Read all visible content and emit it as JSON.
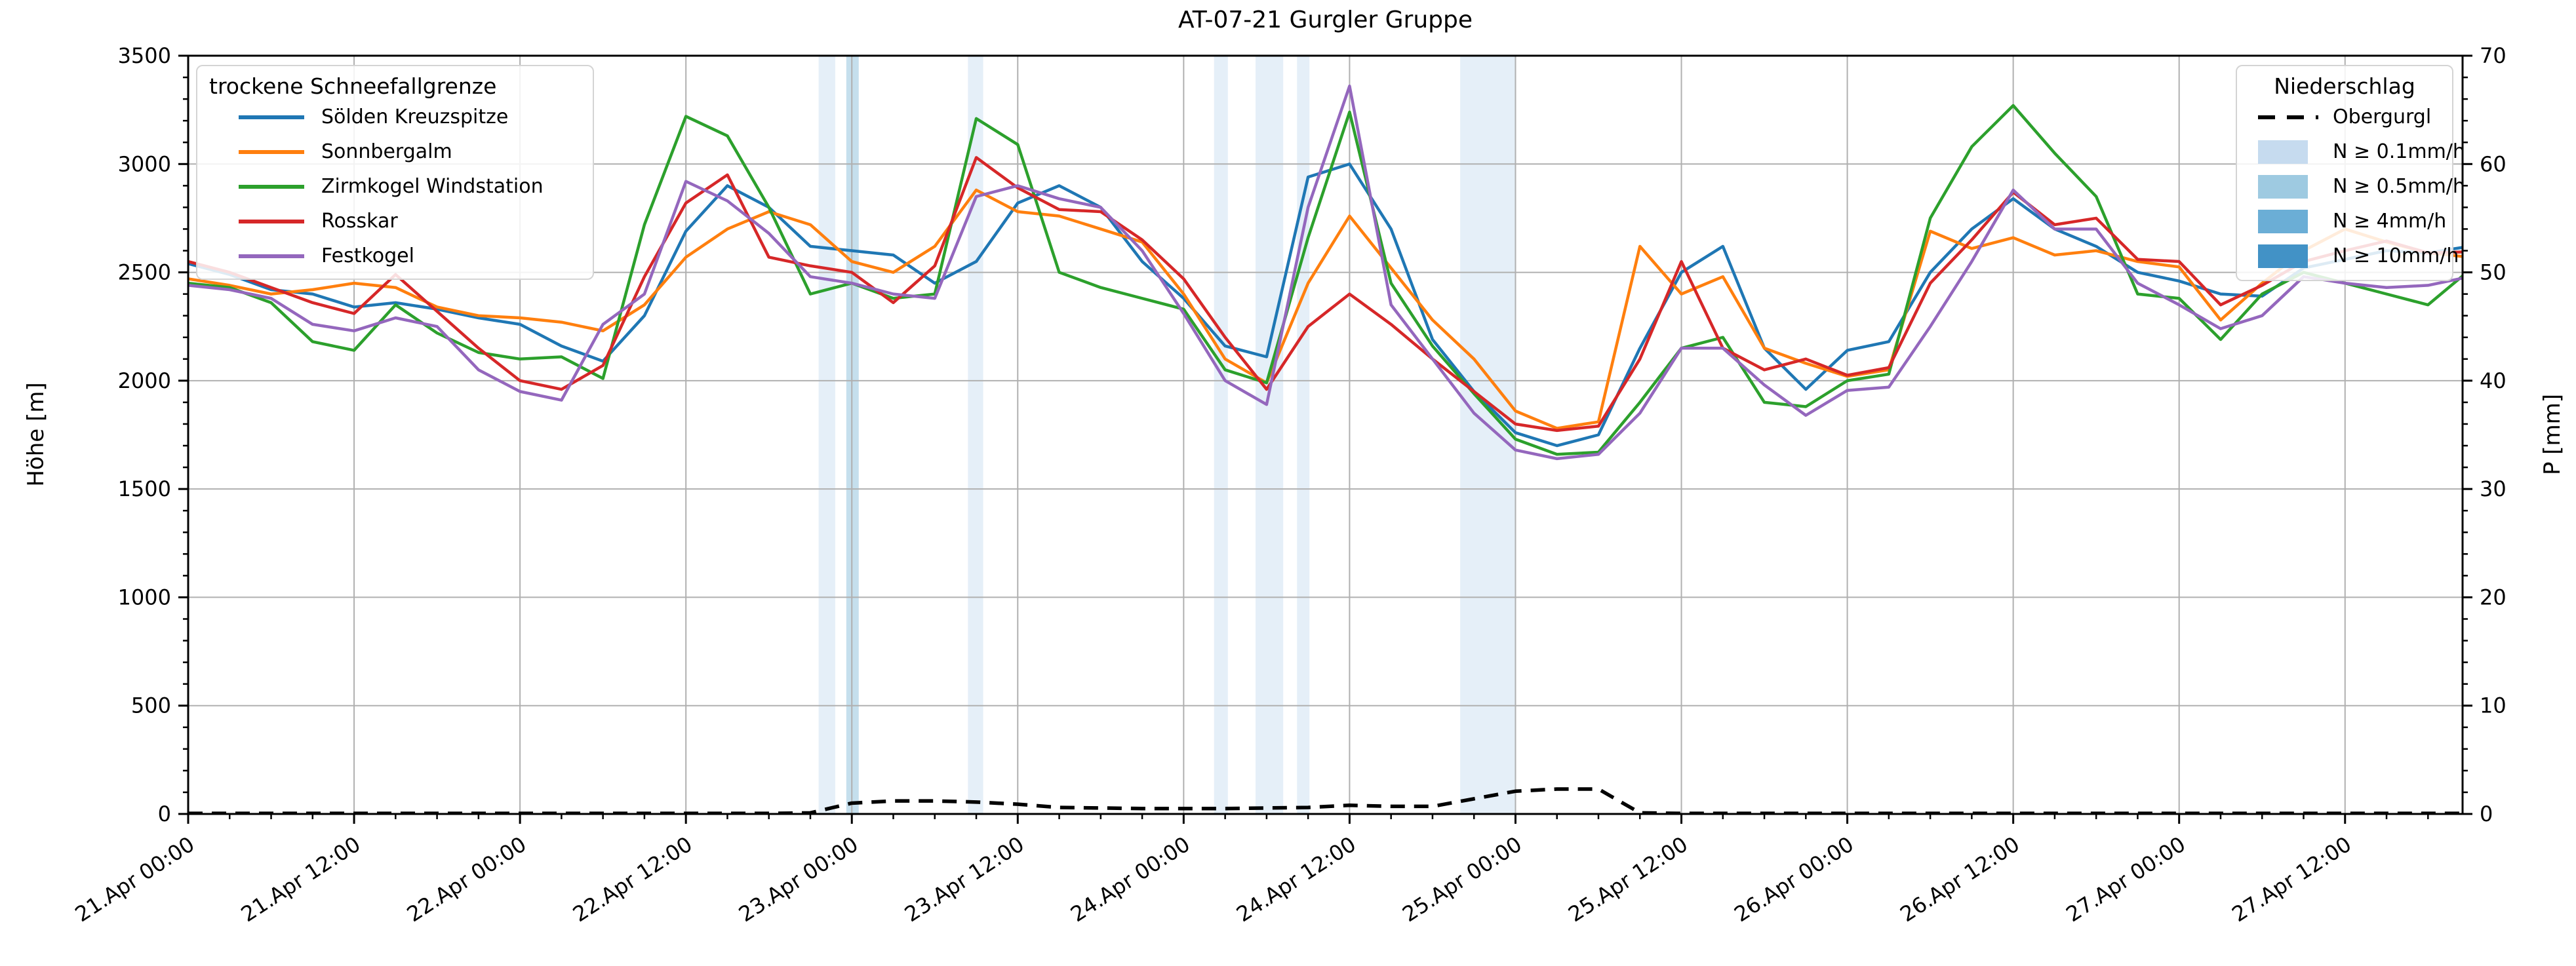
{
  "title": "AT-07-21 Gurgler Gruppe",
  "axes": {
    "y_left_label": "Höhe [m]",
    "y_right_label": "P [mm]",
    "y_left_ticks": [
      0,
      500,
      1000,
      1500,
      2000,
      2500,
      3000,
      3500
    ],
    "y_right_ticks": [
      0,
      10,
      20,
      30,
      40,
      50,
      60,
      70
    ],
    "x_tick_hours": [
      0,
      12,
      24,
      36,
      48,
      60,
      72,
      84,
      96,
      108,
      120,
      132,
      144,
      156
    ],
    "x_tick_labels": [
      "21.Apr 00:00",
      "21.Apr 12:00",
      "22.Apr 00:00",
      "22.Apr 12:00",
      "23.Apr 00:00",
      "23.Apr 12:00",
      "24.Apr 00:00",
      "24.Apr 12:00",
      "25.Apr 00:00",
      "25.Apr 12:00",
      "26.Apr 00:00",
      "26.Apr 12:00",
      "27.Apr 00:00",
      "27.Apr 12:00"
    ]
  },
  "legend_left": {
    "title": "trockene Schneefallgrenze",
    "items": [
      {
        "label": "Sölden Kreuzspitze",
        "color": "#1f77b4"
      },
      {
        "label": "Sonnbergalm",
        "color": "#ff7f0e"
      },
      {
        "label": "Zirmkogel Windstation",
        "color": "#2ca02c"
      },
      {
        "label": "Rosskar",
        "color": "#d62728"
      },
      {
        "label": "Festkogel",
        "color": "#9467bd"
      }
    ]
  },
  "legend_right": {
    "title": "Niederschlag",
    "line_item": {
      "label": "Obergurgl",
      "color": "#000000"
    },
    "band_items": [
      {
        "label": "N ≥ 0.1mm/h",
        "color": "#c6dbef"
      },
      {
        "label": "N ≥ 0.5mm/h",
        "color": "#9ecae1"
      },
      {
        "label": "N ≥ 4mm/h",
        "color": "#6baed6"
      },
      {
        "label": "N ≥ 10mm/h",
        "color": "#4292c6"
      }
    ]
  },
  "chart_data": {
    "type": "line",
    "title": "AT-07-21 Gurgler Gruppe",
    "xlabel": "",
    "ylabel_left": "Höhe [m]",
    "ylabel_right": "P [mm]",
    "ylim_left": [
      0,
      3500
    ],
    "ylim_right": [
      0,
      70
    ],
    "x_start": "21.Apr 00:00",
    "x_max_hours": 164.5,
    "grid": true,
    "x_hours": [
      0,
      3,
      6,
      9,
      12,
      15,
      18,
      21,
      24,
      27,
      30,
      33,
      36,
      39,
      42,
      45,
      48,
      51,
      54,
      57,
      60,
      63,
      66,
      69,
      72,
      75,
      78,
      81,
      84,
      87,
      90,
      93,
      96,
      99,
      102,
      105,
      108,
      111,
      114,
      117,
      120,
      123,
      126,
      129,
      132,
      135,
      138,
      141,
      144,
      147,
      150,
      153,
      156,
      159,
      162,
      165
    ],
    "series": [
      {
        "name": "Sölden Kreuzspitze",
        "color": "#1f77b4",
        "axis": "left",
        "values": [
          2540,
          2490,
          2420,
          2400,
          2340,
          2360,
          2330,
          2290,
          2260,
          2160,
          2090,
          2300,
          2690,
          2900,
          2800,
          2620,
          2600,
          2580,
          2450,
          2550,
          2820,
          2900,
          2800,
          2550,
          2380,
          2160,
          2110,
          2940,
          3000,
          2700,
          2190,
          1950,
          1760,
          1700,
          1750,
          2150,
          2500,
          2620,
          2150,
          1960,
          2140,
          2180,
          2500,
          2700,
          2840,
          2700,
          2620,
          2500,
          2460,
          2400,
          2390,
          2520,
          2560,
          2600,
          2590,
          2620
        ]
      },
      {
        "name": "Sonnbergalm",
        "color": "#ff7f0e",
        "axis": "left",
        "values": [
          2470,
          2440,
          2400,
          2420,
          2450,
          2430,
          2340,
          2300,
          2290,
          2270,
          2230,
          2350,
          2570,
          2700,
          2780,
          2720,
          2550,
          2500,
          2620,
          2880,
          2780,
          2760,
          2700,
          2640,
          2400,
          2100,
          1990,
          2450,
          2760,
          2520,
          2280,
          2100,
          1860,
          1780,
          1810,
          2620,
          2400,
          2480,
          2150,
          2080,
          2020,
          2050,
          2690,
          2610,
          2660,
          2580,
          2600,
          2550,
          2525,
          2280,
          2450,
          2600,
          2700,
          2640,
          2590,
          2570
        ]
      },
      {
        "name": "Zirmkogel Windstation",
        "color": "#2ca02c",
        "axis": "left",
        "values": [
          2450,
          2430,
          2360,
          2180,
          2140,
          2350,
          2220,
          2130,
          2100,
          2110,
          2010,
          2720,
          3220,
          3130,
          2800,
          2400,
          2450,
          2380,
          2400,
          3210,
          3090,
          2500,
          2430,
          2380,
          2330,
          2050,
          1990,
          2660,
          3240,
          2450,
          2160,
          1940,
          1730,
          1660,
          1670,
          1900,
          2150,
          2200,
          1900,
          1880,
          2000,
          2030,
          2750,
          3080,
          3270,
          3050,
          2850,
          2400,
          2380,
          2190,
          2400,
          2500,
          2450,
          2400,
          2350,
          2510
        ]
      },
      {
        "name": "Rosskar",
        "color": "#d62728",
        "axis": "left",
        "values": [
          2550,
          2500,
          2430,
          2360,
          2310,
          2490,
          2320,
          2150,
          2000,
          1960,
          2070,
          2480,
          2820,
          2950,
          2570,
          2530,
          2500,
          2360,
          2530,
          3030,
          2890,
          2790,
          2780,
          2650,
          2470,
          2200,
          1960,
          2250,
          2400,
          2260,
          2100,
          1950,
          1800,
          1770,
          1790,
          2100,
          2550,
          2150,
          2050,
          2100,
          2025,
          2060,
          2450,
          2650,
          2870,
          2720,
          2750,
          2560,
          2550,
          2350,
          2440,
          2550,
          2600,
          2645,
          2590,
          2595
        ]
      },
      {
        "name": "Festkogel",
        "color": "#9467bd",
        "axis": "left",
        "values": [
          2440,
          2420,
          2380,
          2260,
          2230,
          2290,
          2250,
          2050,
          1950,
          1910,
          2260,
          2400,
          2920,
          2830,
          2680,
          2480,
          2450,
          2400,
          2380,
          2850,
          2900,
          2840,
          2800,
          2600,
          2310,
          2000,
          1890,
          2800,
          3360,
          2350,
          2100,
          1850,
          1680,
          1640,
          1660,
          1850,
          2150,
          2150,
          1980,
          1840,
          1955,
          1970,
          2250,
          2550,
          2880,
          2700,
          2700,
          2450,
          2350,
          2240,
          2300,
          2480,
          2450,
          2430,
          2440,
          2480
        ]
      }
    ],
    "precip_line": {
      "name": "Obergurgl",
      "color": "#000000",
      "axis": "right",
      "dashed": true,
      "values": [
        0.05,
        0.05,
        0.05,
        0.05,
        0.05,
        0.05,
        0.05,
        0.05,
        0.05,
        0.05,
        0.05,
        0.05,
        0.05,
        0.05,
        0.05,
        0.1,
        1.0,
        1.2,
        1.2,
        1.1,
        0.9,
        0.6,
        0.55,
        0.5,
        0.5,
        0.5,
        0.55,
        0.6,
        0.8,
        0.7,
        0.7,
        1.4,
        2.1,
        2.3,
        2.3,
        0.1,
        0.05,
        0.05,
        0.05,
        0.05,
        0.05,
        0.05,
        0.05,
        0.05,
        0.05,
        0.05,
        0.05,
        0.05,
        0.05,
        0.05,
        0.05,
        0.05,
        0.05,
        0.05,
        0.05,
        0.05
      ]
    },
    "precip_bands": [
      {
        "start_h": 45.6,
        "end_h": 46.8,
        "level": "0.1"
      },
      {
        "start_h": 47.6,
        "end_h": 48.5,
        "level": "0.5"
      },
      {
        "start_h": 56.4,
        "end_h": 57.5,
        "level": "0.1"
      },
      {
        "start_h": 74.2,
        "end_h": 75.2,
        "level": "0.1"
      },
      {
        "start_h": 77.2,
        "end_h": 79.2,
        "level": "0.1"
      },
      {
        "start_h": 80.2,
        "end_h": 81.1,
        "level": "0.1"
      },
      {
        "start_h": 92.0,
        "end_h": 96.0,
        "level": "0.1"
      }
    ],
    "band_colors": {
      "0.1": "#c6dbef",
      "0.5": "#9ecae1",
      "4": "#6baed6",
      "10": "#4292c6"
    }
  }
}
